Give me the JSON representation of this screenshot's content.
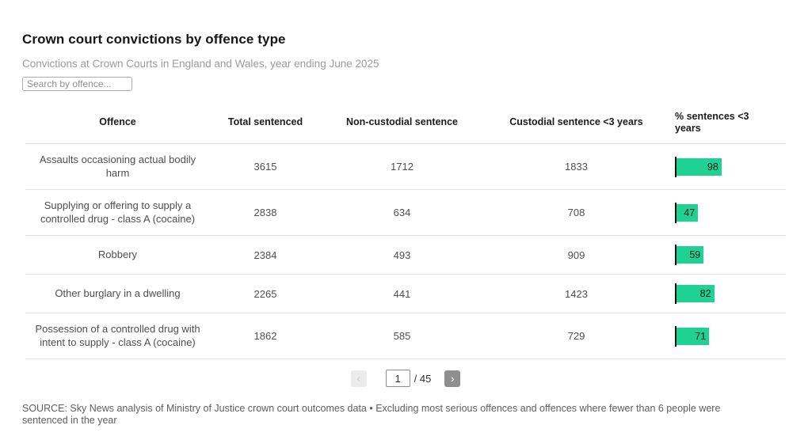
{
  "page": {
    "title": "Crown court convictions by offence type",
    "subtitle": "Convictions at Crown Courts in England and Wales, year ending June 2025",
    "search_placeholder": "Search by offence...",
    "source": "SOURCE: Sky News analysis of Ministry of Justice crown court outcomes data • Excluding most serious offences and offences where fewer than 6 people were sentenced in the year"
  },
  "table": {
    "columns": [
      "Offence",
      "Total sentenced",
      "Non-custodial sentence",
      "Custodial sentence <3 years",
      "% sentences <3 years"
    ],
    "rows": [
      {
        "offence": "Assaults occasioning actual bodily harm",
        "total": "3615",
        "non_custodial": "1712",
        "custodial_lt3": "1833",
        "pct_lt3": 98
      },
      {
        "offence": "Supplying or offering to supply a controlled drug - class A (cocaine)",
        "total": "2838",
        "non_custodial": "634",
        "custodial_lt3": "708",
        "pct_lt3": 47
      },
      {
        "offence": "Robbery",
        "total": "2384",
        "non_custodial": "493",
        "custodial_lt3": "909",
        "pct_lt3": 59
      },
      {
        "offence": "Other burglary in a dwelling",
        "total": "2265",
        "non_custodial": "441",
        "custodial_lt3": "1423",
        "pct_lt3": 82
      },
      {
        "offence": "Possession of a controlled drug with intent to supply - class A (cocaine)",
        "total": "1862",
        "non_custodial": "585",
        "custodial_lt3": "729",
        "pct_lt3": 71
      }
    ]
  },
  "pagination": {
    "page": "1",
    "total_label": "/ 45",
    "prev_icon": "‹",
    "next_icon": "›"
  },
  "colors": {
    "bar_green": "#1fd193",
    "bar_axis": "#111111"
  },
  "chart_data": {
    "type": "bar",
    "title": "% sentences <3 years",
    "categories": [
      "Assaults occasioning actual bodily harm",
      "Supplying or offering to supply a controlled drug - class A (cocaine)",
      "Robbery",
      "Other burglary in a dwelling",
      "Possession of a controlled drug with intent to supply - class A (cocaine)"
    ],
    "values": [
      98,
      47,
      59,
      82,
      71
    ],
    "xlim": [
      0,
      100
    ],
    "orientation": "horizontal",
    "bar_color": "#1fd193"
  }
}
